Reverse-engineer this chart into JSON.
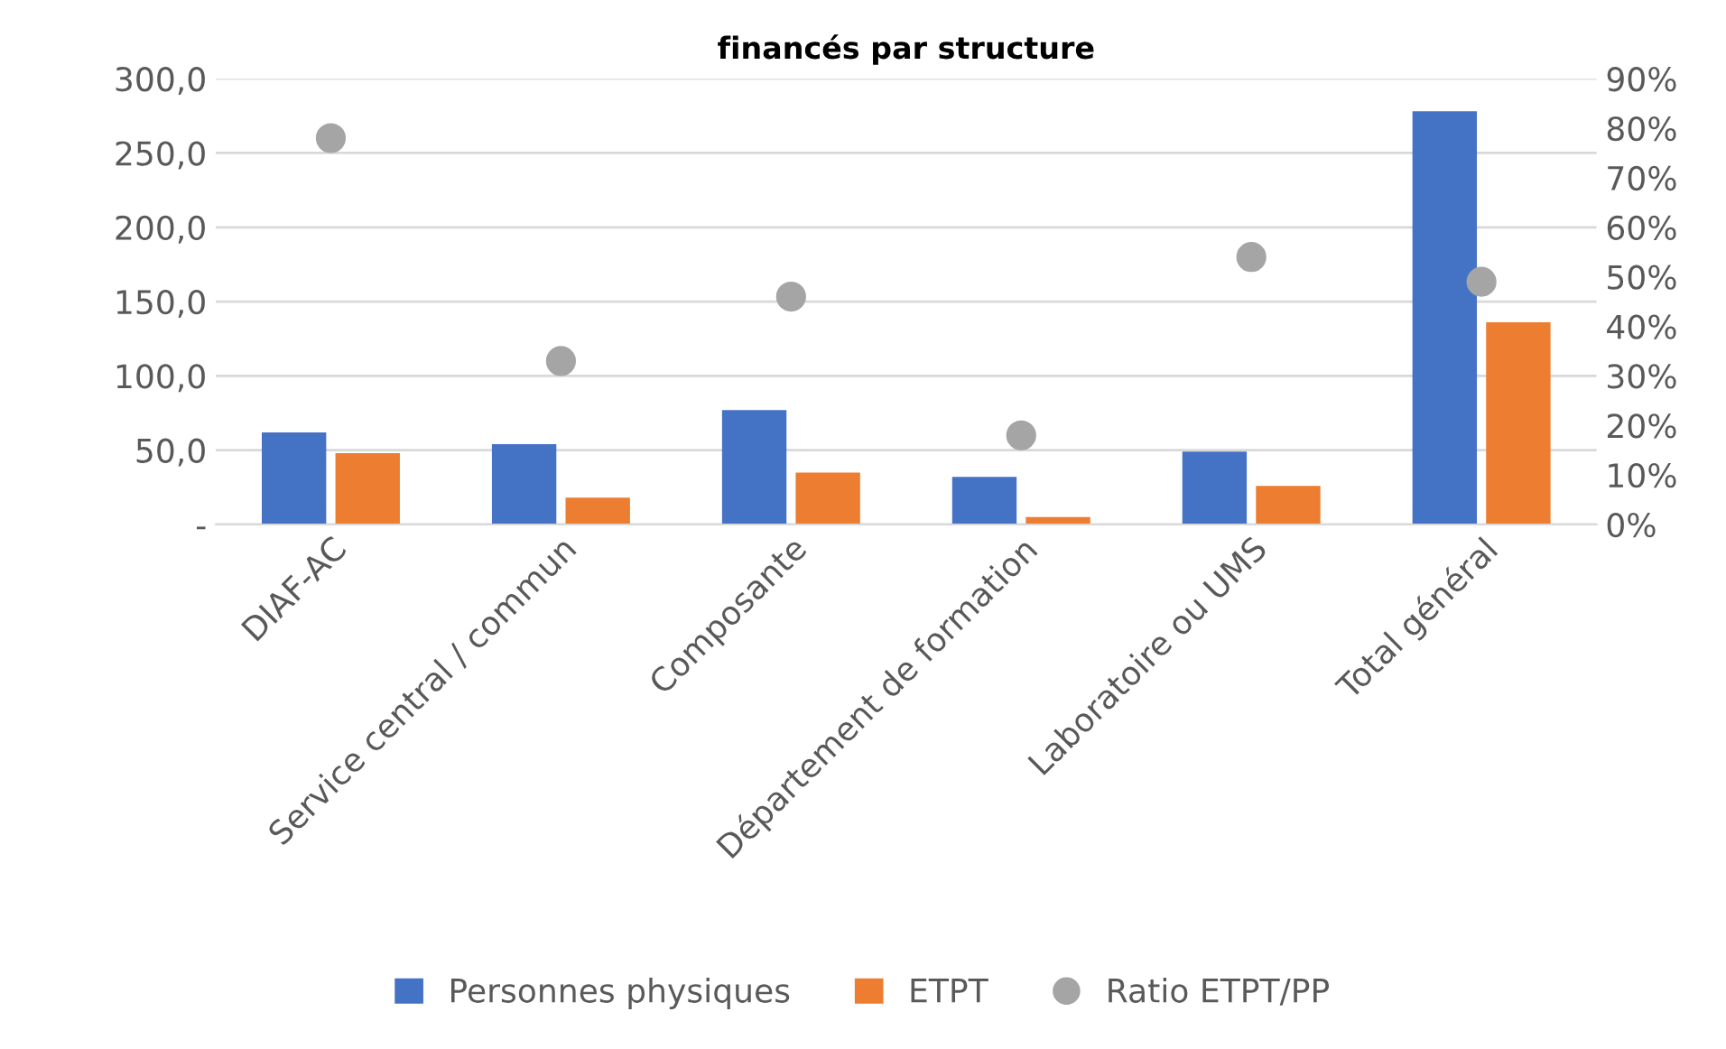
{
  "chart_data": {
    "type": "bar",
    "title": "financés par structure",
    "categories": [
      "DIAF-AC",
      "Service central / commun",
      "Composante",
      "Département de formation",
      "Laboratoire ou UMS",
      "Total général"
    ],
    "series": [
      {
        "name": "Personnes physiques",
        "color": "#4472c4",
        "values": [
          62,
          54,
          77,
          32,
          49,
          278
        ]
      },
      {
        "name": "ETPT",
        "color": "#ed7d31",
        "values": [
          48,
          18,
          35,
          5,
          26,
          136
        ]
      },
      {
        "name": "Ratio ETPT/PP",
        "color": "#a5a5a5",
        "type": "scatter",
        "axis": "y2",
        "values": [
          78,
          33,
          46,
          18,
          54,
          49
        ]
      }
    ],
    "ylim": [
      0,
      300
    ],
    "yticks": [
      {
        "value": 0,
        "label": "-"
      },
      {
        "value": 50,
        "label": "50,0"
      },
      {
        "value": 100,
        "label": "100,0"
      },
      {
        "value": 150,
        "label": "150,0"
      },
      {
        "value": 200,
        "label": "200,0"
      },
      {
        "value": 250,
        "label": "250,0"
      },
      {
        "value": 300,
        "label": "300,0"
      }
    ],
    "y2lim": [
      0,
      90
    ],
    "y2ticks": [
      {
        "value": 0,
        "label": "0%"
      },
      {
        "value": 10,
        "label": "10%"
      },
      {
        "value": 20,
        "label": "20%"
      },
      {
        "value": 30,
        "label": "30%"
      },
      {
        "value": 40,
        "label": "40%"
      },
      {
        "value": 50,
        "label": "50%"
      },
      {
        "value": 60,
        "label": "60%"
      },
      {
        "value": 70,
        "label": "70%"
      },
      {
        "value": 80,
        "label": "80%"
      },
      {
        "value": 90,
        "label": "90%"
      }
    ],
    "grid": "y",
    "legend": "bottom",
    "marker": "circle"
  }
}
